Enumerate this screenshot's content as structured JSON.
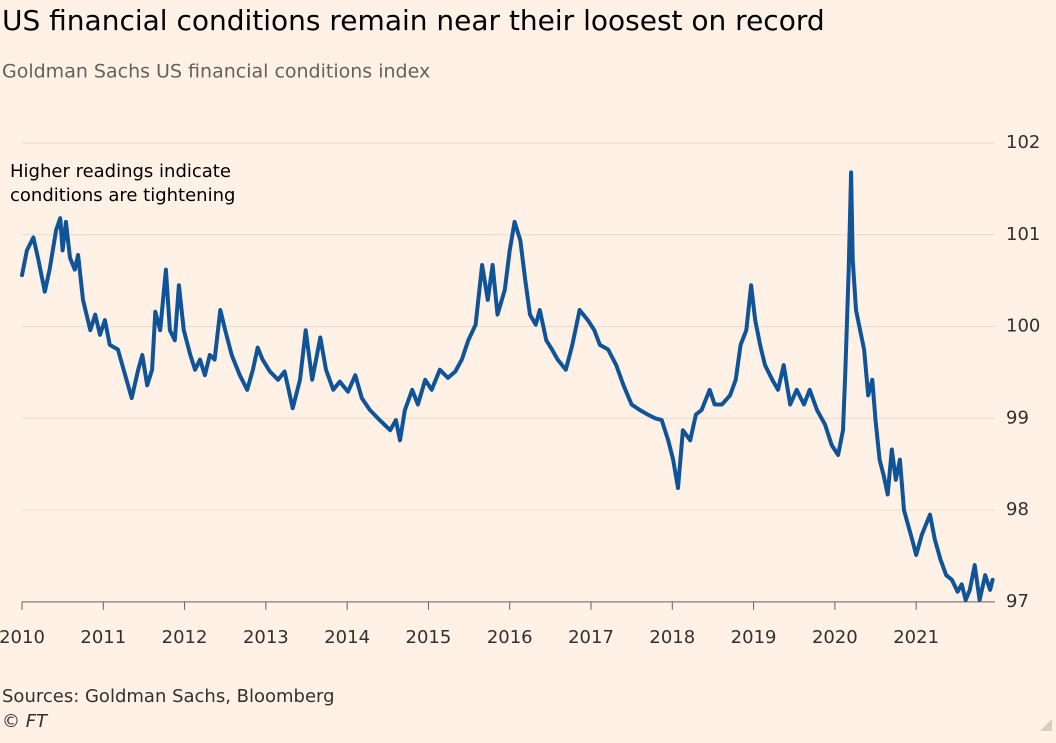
{
  "chart_data": {
    "type": "line",
    "title": "US financial conditions remain near their loosest on record",
    "subtitle": "Goldman Sachs US financial conditions index",
    "annotation": [
      "Higher readings indicate",
      "conditions are tightening"
    ],
    "source": "Sources: Goldman Sachs, Bloomberg",
    "credit": "© FT",
    "color": "#0f5499",
    "grid": true,
    "xlim": [
      2010,
      2021.97
    ],
    "xticks": [
      2010,
      2011,
      2012,
      2013,
      2014,
      2015,
      2016,
      2017,
      2018,
      2019,
      2020,
      2021
    ],
    "ylim": [
      96.9,
      102
    ],
    "yticks": [
      97,
      98,
      99,
      100,
      101,
      102
    ],
    "x": [
      2010.0,
      2010.06,
      2010.14,
      2010.2,
      2010.28,
      2010.34,
      2010.42,
      2010.47,
      2010.5,
      2010.54,
      2010.59,
      2010.65,
      2010.69,
      2010.75,
      2010.84,
      2010.9,
      2010.96,
      2011.02,
      2011.08,
      2011.18,
      2011.27,
      2011.35,
      2011.43,
      2011.48,
      2011.54,
      2011.6,
      2011.64,
      2011.7,
      2011.77,
      2011.82,
      2011.88,
      2011.93,
      2011.99,
      2012.07,
      2012.13,
      2012.19,
      2012.25,
      2012.31,
      2012.37,
      2012.44,
      2012.5,
      2012.58,
      2012.68,
      2012.77,
      2012.84,
      2012.9,
      2012.96,
      2013.05,
      2013.15,
      2013.23,
      2013.33,
      2013.42,
      2013.49,
      2013.57,
      2013.67,
      2013.74,
      2013.83,
      2013.91,
      2014.01,
      2014.1,
      2014.18,
      2014.28,
      2014.4,
      2014.53,
      2014.6,
      2014.65,
      2014.71,
      2014.8,
      2014.87,
      2014.96,
      2015.04,
      2015.14,
      2015.24,
      2015.33,
      2015.41,
      2015.49,
      2015.58,
      2015.66,
      2015.73,
      2015.79,
      2015.85,
      2015.94,
      2016.0,
      2016.06,
      2016.13,
      2016.19,
      2016.25,
      2016.32,
      2016.37,
      2016.45,
      2016.52,
      2016.59,
      2016.69,
      2016.77,
      2016.86,
      2016.96,
      2017.04,
      2017.11,
      2017.21,
      2017.31,
      2017.4,
      2017.5,
      2017.6,
      2017.7,
      2017.79,
      2017.87,
      2017.95,
      2018.01,
      2018.07,
      2018.13,
      2018.22,
      2018.29,
      2018.36,
      2018.46,
      2018.52,
      2018.61,
      2018.71,
      2018.78,
      2018.84,
      2018.91,
      2018.97,
      2019.02,
      2019.08,
      2019.14,
      2019.23,
      2019.3,
      2019.37,
      2019.45,
      2019.53,
      2019.62,
      2019.69,
      2019.78,
      2019.88,
      2019.96,
      2020.04,
      2020.1,
      2020.13,
      2020.17,
      2020.2,
      2020.22,
      2020.26,
      2020.31,
      2020.36,
      2020.41,
      2020.46,
      2020.5,
      2020.55,
      2020.6,
      2020.65,
      2020.7,
      2020.75,
      2020.8,
      2020.85,
      2020.9,
      2020.95,
      2021.0,
      2021.07,
      2021.17,
      2021.23,
      2021.3,
      2021.37,
      2021.44,
      2021.51,
      2021.56,
      2021.61,
      2021.66,
      2021.72,
      2021.78,
      2021.85,
      2021.91,
      2021.94
    ],
    "values": [
      100.56,
      100.83,
      100.97,
      100.73,
      100.38,
      100.62,
      101.05,
      101.18,
      100.83,
      101.14,
      100.75,
      100.62,
      100.78,
      100.29,
      99.96,
      100.13,
      99.91,
      100.07,
      99.8,
      99.75,
      99.47,
      99.22,
      99.53,
      99.69,
      99.36,
      99.53,
      100.16,
      99.96,
      100.62,
      99.96,
      99.85,
      100.45,
      99.96,
      99.69,
      99.53,
      99.64,
      99.47,
      99.69,
      99.64,
      100.18,
      99.96,
      99.69,
      99.47,
      99.31,
      99.53,
      99.77,
      99.64,
      99.51,
      99.42,
      99.51,
      99.11,
      99.42,
      99.96,
      99.42,
      99.88,
      99.53,
      99.31,
      99.4,
      99.29,
      99.47,
      99.22,
      99.09,
      98.98,
      98.87,
      98.98,
      98.76,
      99.09,
      99.31,
      99.15,
      99.42,
      99.31,
      99.53,
      99.44,
      99.51,
      99.64,
      99.85,
      100.02,
      100.67,
      100.29,
      100.67,
      100.13,
      100.4,
      100.83,
      101.14,
      100.94,
      100.51,
      100.13,
      100.02,
      100.18,
      99.85,
      99.75,
      99.64,
      99.53,
      99.8,
      100.18,
      100.07,
      99.96,
      99.8,
      99.75,
      99.58,
      99.36,
      99.15,
      99.09,
      99.04,
      99.0,
      98.98,
      98.76,
      98.55,
      98.24,
      98.87,
      98.76,
      99.04,
      99.09,
      99.31,
      99.15,
      99.15,
      99.25,
      99.42,
      99.8,
      99.96,
      100.45,
      100.07,
      99.8,
      99.58,
      99.42,
      99.31,
      99.58,
      99.15,
      99.31,
      99.15,
      99.31,
      99.09,
      98.93,
      98.71,
      98.6,
      98.87,
      99.53,
      100.62,
      101.68,
      100.73,
      100.18,
      99.96,
      99.75,
      99.25,
      99.42,
      98.98,
      98.55,
      98.38,
      98.17,
      98.66,
      98.33,
      98.55,
      98.0,
      97.84,
      97.68,
      97.51,
      97.73,
      97.95,
      97.68,
      97.46,
      97.29,
      97.24,
      97.11,
      97.19,
      97.02,
      97.13,
      97.4,
      97.02,
      97.29,
      97.13,
      97.24
    ]
  }
}
